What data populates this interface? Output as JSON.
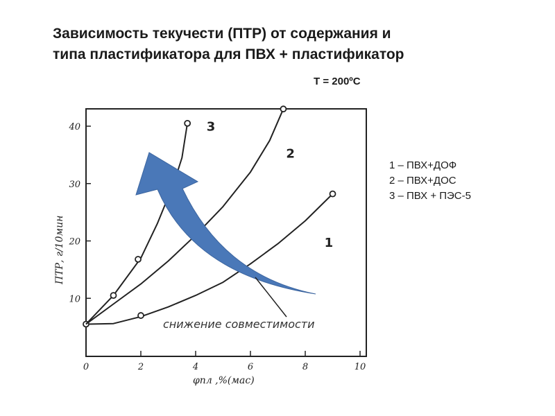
{
  "title_line1": "Зависимость текучести (ПТР) от содержания и",
  "title_line2": "типа пластификатора для ПВХ + пластификатор",
  "temperature": "Т = 200ºС",
  "legend": [
    "1 – ПВХ+ДОФ",
    "2 – ПВХ+ДОС",
    "3 – ПВХ + ПЭС-5"
  ],
  "chart_data": {
    "type": "line",
    "xlabel": "φпл ,%(мас)",
    "ylabel": "ПТР, г/10мин",
    "xlim": [
      0,
      10
    ],
    "ylim": [
      0,
      42
    ],
    "x_ticks": [
      "0",
      "2",
      "4",
      "6",
      "8",
      "10"
    ],
    "y_ticks": [
      "10",
      "20",
      "30",
      "40"
    ],
    "grid": false,
    "annotation": "снижение совместимости",
    "arrow_color": "#4a78b8",
    "series": [
      {
        "name": "1",
        "points": [
          [
            0,
            5.5
          ],
          [
            1,
            5.6
          ],
          [
            2,
            6.8
          ],
          [
            3,
            8.5
          ],
          [
            4,
            10.5
          ],
          [
            5,
            12.8
          ],
          [
            6,
            16
          ],
          [
            7,
            19.5
          ],
          [
            8,
            23.5
          ],
          [
            9,
            28.2
          ]
        ],
        "markers": [
          [
            0,
            5.5
          ],
          [
            2,
            7
          ],
          [
            9,
            28.2
          ]
        ],
        "label_at": [
          8.7,
          19
        ]
      },
      {
        "name": "2",
        "points": [
          [
            0,
            5.5
          ],
          [
            1,
            9
          ],
          [
            2,
            12.5
          ],
          [
            3,
            16.5
          ],
          [
            4,
            21
          ],
          [
            5,
            26
          ],
          [
            6,
            32
          ],
          [
            6.7,
            37.5
          ],
          [
            7.2,
            43
          ]
        ],
        "markers": [
          [
            7.2,
            43
          ]
        ],
        "label_at": [
          7.3,
          34.5
        ]
      },
      {
        "name": "3",
        "points": [
          [
            0,
            5.5
          ],
          [
            1,
            10.5
          ],
          [
            2,
            17
          ],
          [
            2.6,
            23
          ],
          [
            3.2,
            30
          ],
          [
            3.5,
            34.5
          ],
          [
            3.7,
            40.5
          ]
        ],
        "markers": [
          [
            1,
            10.5
          ],
          [
            1.9,
            16.8
          ],
          [
            3.7,
            40.5
          ]
        ],
        "label_at": [
          4.4,
          39.2
        ]
      }
    ]
  }
}
